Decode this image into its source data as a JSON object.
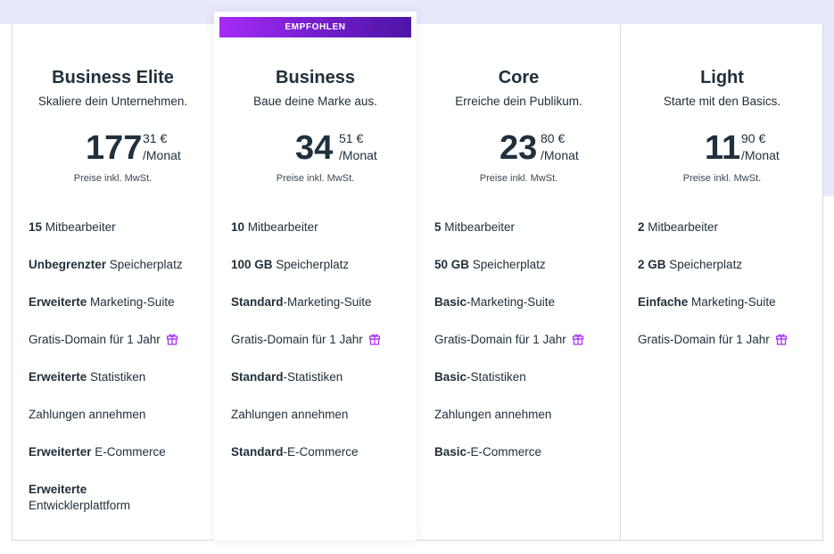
{
  "recommended_badge": "EMPFOHLEN",
  "vat_note": "Preise inkl. MwSt.",
  "gift_icon_color": "#a62bf6",
  "plans": [
    {
      "name": "Business Elite",
      "tagline": "Skaliere dein Unternehmen.",
      "price_whole": "177",
      "price_cents": "31 €",
      "period": "/Monat",
      "features": [
        {
          "bold": "15",
          "text": " Mitbearbeiter"
        },
        {
          "bold": "Unbegrenzter",
          "text": " Speicherplatz"
        },
        {
          "bold": "Erweiterte",
          "text": " Marketing-Suite"
        },
        {
          "bold": "",
          "text": "Gratis-Domain für 1 Jahr",
          "gift": true
        },
        {
          "bold": "Erweiterte",
          "text": " Statistiken"
        },
        {
          "bold": "",
          "text": "Zahlungen annehmen"
        },
        {
          "bold": "Erweiterter",
          "text": " E-Commerce"
        },
        {
          "bold": "Erweiterte",
          "text": "Entwicklerplattform",
          "linebreak": true
        }
      ]
    },
    {
      "name": "Business",
      "tagline": "Baue deine Marke aus.",
      "price_whole": "34",
      "price_cents": "51 €",
      "period": "/Monat",
      "features": [
        {
          "bold": "10",
          "text": " Mitbearbeiter"
        },
        {
          "bold": "100 GB",
          "text": " Speicherplatz"
        },
        {
          "bold": "Standard",
          "text": "-Marketing-Suite"
        },
        {
          "bold": "",
          "text": "Gratis-Domain für 1 Jahr",
          "gift": true
        },
        {
          "bold": "Standard",
          "text": "-Statistiken"
        },
        {
          "bold": "",
          "text": "Zahlungen annehmen"
        },
        {
          "bold": "Standard",
          "text": "-E-Commerce"
        }
      ]
    },
    {
      "name": "Core",
      "tagline": "Erreiche dein Publikum.",
      "price_whole": "23",
      "price_cents": "80 €",
      "period": "/Monat",
      "features": [
        {
          "bold": "5",
          "text": " Mitbearbeiter"
        },
        {
          "bold": "50 GB",
          "text": " Speicherplatz"
        },
        {
          "bold": "Basic",
          "text": "-Marketing-Suite"
        },
        {
          "bold": "",
          "text": "Gratis-Domain für 1 Jahr",
          "gift": true
        },
        {
          "bold": "Basic",
          "text": "-Statistiken"
        },
        {
          "bold": "",
          "text": "Zahlungen annehmen"
        },
        {
          "bold": "Basic",
          "text": "-E-Commerce"
        }
      ]
    },
    {
      "name": "Light",
      "tagline": "Starte mit den Basics.",
      "price_whole": "11",
      "price_cents": "90 €",
      "period": "/Monat",
      "features": [
        {
          "bold": "2",
          "text": " Mitbearbeiter"
        },
        {
          "bold": "2 GB",
          "text": " Speicherplatz"
        },
        {
          "bold": "Einfache",
          "text": " Marketing-Suite"
        },
        {
          "bold": "",
          "text": "Gratis-Domain für 1 Jahr",
          "gift": true
        }
      ]
    }
  ]
}
